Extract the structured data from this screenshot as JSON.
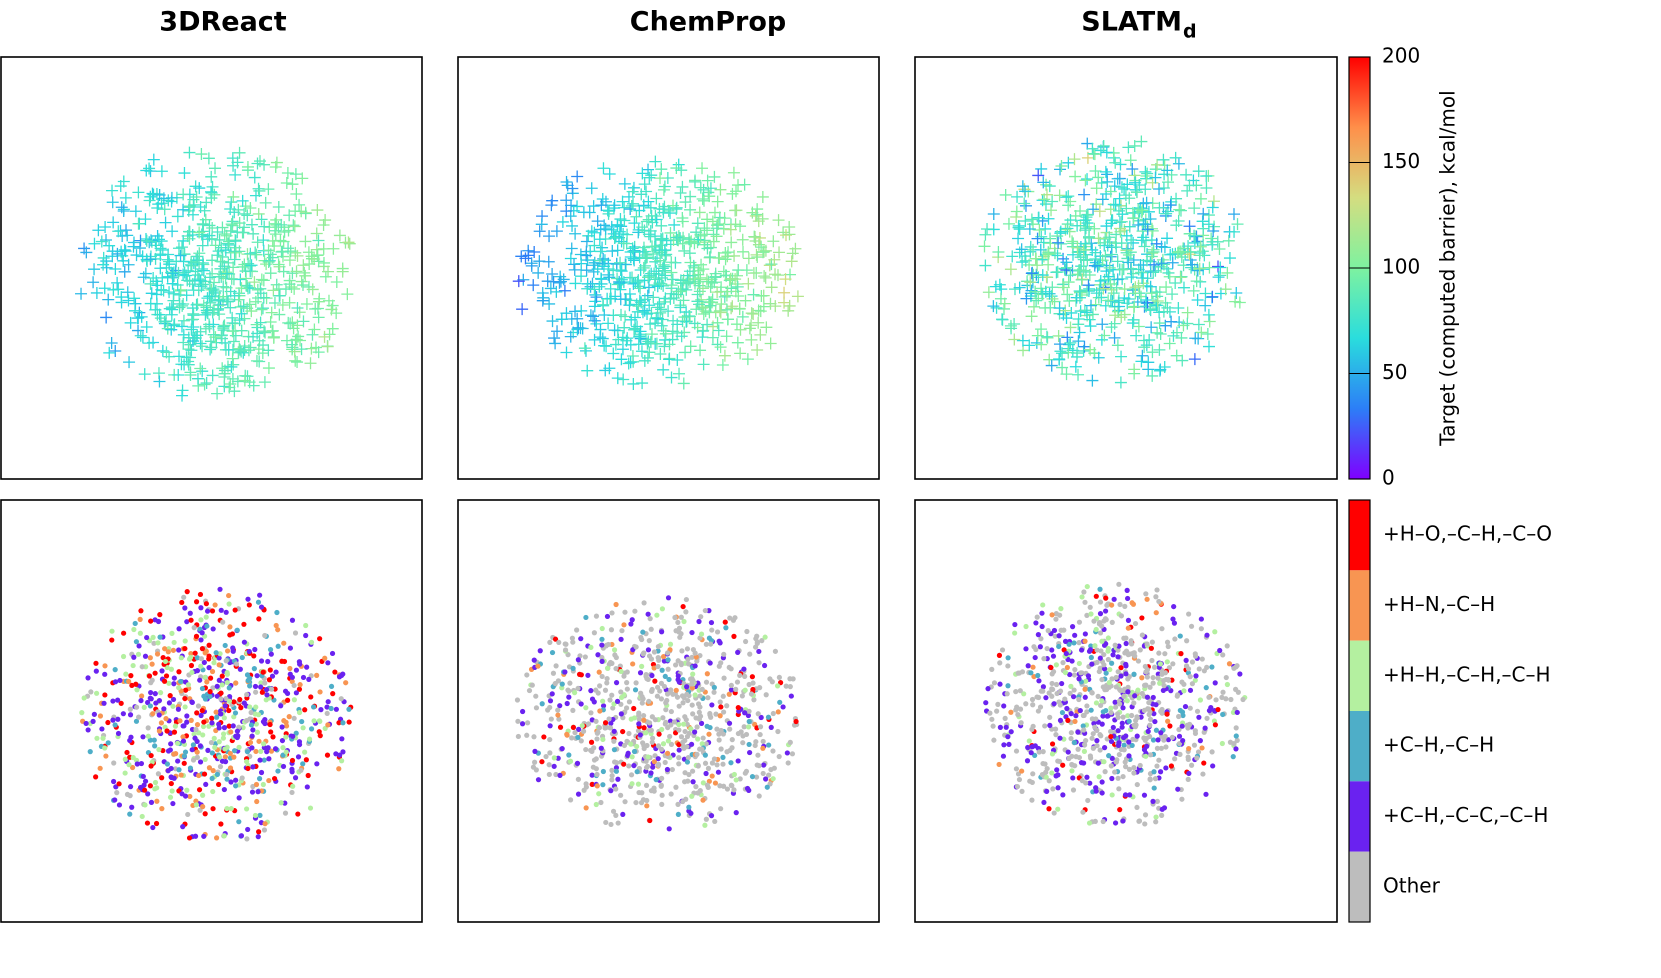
{
  "chart_data": [
    {
      "type": "scatter",
      "title": "3DReact",
      "subtitle": "",
      "marker": "plus",
      "color_by": "target",
      "xlabel": "",
      "ylabel": ""
    },
    {
      "type": "scatter",
      "title": "ChemProp",
      "marker": "plus",
      "color_by": "target",
      "xlabel": "",
      "ylabel": ""
    },
    {
      "type": "scatter",
      "title": "SLATM",
      "title_subscript": "d",
      "marker": "plus",
      "color_by": "target",
      "xlabel": "",
      "ylabel": ""
    },
    {
      "type": "scatter",
      "title": "",
      "marker": "dot",
      "color_by": "reaction_class",
      "xlabel": "",
      "ylabel": ""
    },
    {
      "type": "scatter",
      "title": "",
      "marker": "dot",
      "color_by": "reaction_class",
      "xlabel": "",
      "ylabel": ""
    },
    {
      "type": "scatter",
      "title": "",
      "marker": "dot",
      "color_by": "reaction_class",
      "xlabel": "",
      "ylabel": ""
    }
  ],
  "colorbar_continuous": {
    "label": "Target (computed barrier), kcal/mol",
    "range": [
      0,
      200
    ],
    "ticks": [
      "0",
      "50",
      "100",
      "150",
      "200"
    ],
    "colormap": "rainbow",
    "stops": [
      "#7f00ff",
      "#2c7ef7",
      "#2adddd",
      "#7ef2a0",
      "#d4dd80",
      "#ff8f4a",
      "#ff0000"
    ]
  },
  "colorbar_categories": {
    "items": [
      {
        "label": "+H–O,–C–H,–C–O",
        "color": "#ff0000"
      },
      {
        "label": "+H–N,–C–H",
        "color": "#f89552"
      },
      {
        "label": "+H–H,–C–H,–C–H",
        "color": "#b4f0a0"
      },
      {
        "label": "+C–H,–C–H",
        "color": "#4eaec8"
      },
      {
        "label": "+C–H,–C–C,–C–H",
        "color": "#6a22f0"
      },
      {
        "label": "Other",
        "color": "#bdbdbd"
      }
    ]
  }
}
